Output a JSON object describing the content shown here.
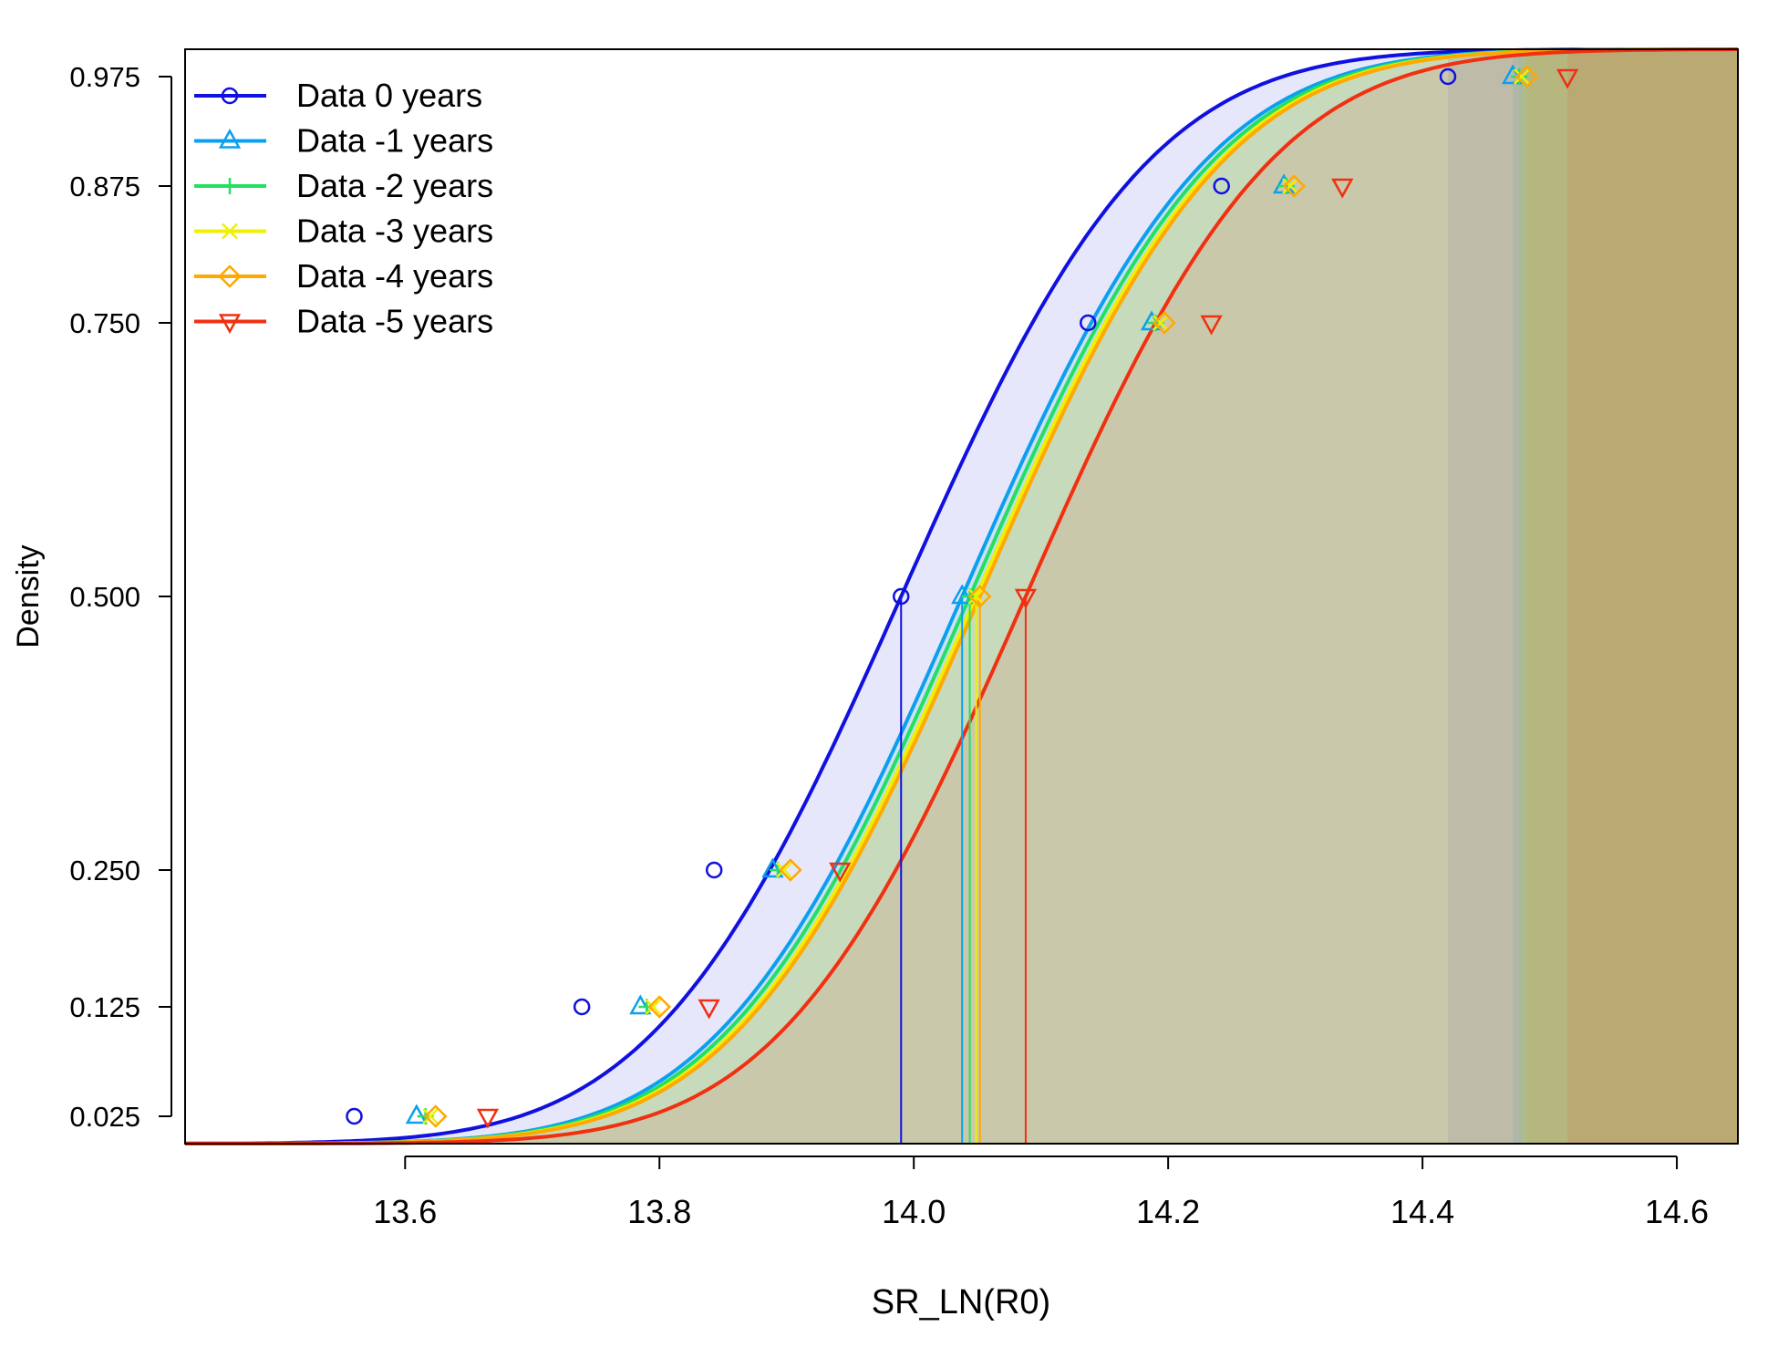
{
  "chart_data": {
    "type": "line",
    "title": "",
    "xlabel": "SR_LN(R0)",
    "ylabel": "Density",
    "xlim": [
      13.427,
      14.648
    ],
    "ylim": [
      0.0,
      1.0
    ],
    "x_ticks": [
      13.6,
      13.8,
      14.0,
      14.2,
      14.4,
      14.6
    ],
    "x_tick_labels": [
      "13.6",
      "13.8",
      "14.0",
      "14.2",
      "14.4",
      "14.6"
    ],
    "y_ticks": [
      0.025,
      0.125,
      0.25,
      0.5,
      0.75,
      0.875,
      0.975
    ],
    "y_tick_labels": [
      "0.025",
      "0.125",
      "0.250",
      "0.500",
      "0.750",
      "0.875",
      "0.975"
    ],
    "grid": false,
    "legend_position": "top-left",
    "series": [
      {
        "name": "Data 0 years",
        "color": "#1010e0",
        "marker": "circle",
        "median": 13.99,
        "sd": 0.1531,
        "shade_from": 14.42,
        "points": [
          [
            13.56,
            0.025
          ],
          [
            13.739,
            0.125
          ],
          [
            13.843,
            0.25
          ],
          [
            13.99,
            0.5
          ],
          [
            14.137,
            0.75
          ],
          [
            14.242,
            0.875
          ],
          [
            14.42,
            0.975
          ]
        ]
      },
      {
        "name": "Data -1 years",
        "color": "#0ba0ee",
        "marker": "triangle",
        "median": 14.038,
        "sd": 0.1505,
        "shade_from": 14.471,
        "points": [
          [
            13.609,
            0.025
          ],
          [
            13.785,
            0.125
          ],
          [
            13.889,
            0.25
          ],
          [
            14.038,
            0.5
          ],
          [
            14.187,
            0.75
          ],
          [
            14.291,
            0.875
          ],
          [
            14.471,
            0.975
          ]
        ]
      },
      {
        "name": "Data -2 years",
        "color": "#22e060",
        "marker": "plus",
        "median": 14.044,
        "sd": 0.1505,
        "shade_from": 14.476,
        "points": [
          [
            13.616,
            0.025
          ],
          [
            13.79,
            0.125
          ],
          [
            13.893,
            0.25
          ],
          [
            14.044,
            0.5
          ],
          [
            14.19,
            0.75
          ],
          [
            14.293,
            0.875
          ],
          [
            14.476,
            0.975
          ]
        ]
      },
      {
        "name": "Data -3 years",
        "color": "#f0f000",
        "marker": "cross",
        "median": 14.049,
        "sd": 0.1505,
        "shade_from": 14.478,
        "points": [
          [
            13.62,
            0.025
          ],
          [
            13.795,
            0.125
          ],
          [
            13.898,
            0.25
          ],
          [
            14.049,
            0.5
          ],
          [
            14.194,
            0.75
          ],
          [
            14.296,
            0.875
          ],
          [
            14.478,
            0.975
          ]
        ]
      },
      {
        "name": "Data -4 years",
        "color": "#ffa800",
        "marker": "diamond",
        "median": 14.052,
        "sd": 0.1505,
        "shade_from": 14.482,
        "points": [
          [
            13.624,
            0.025
          ],
          [
            13.8,
            0.125
          ],
          [
            13.903,
            0.25
          ],
          [
            14.052,
            0.5
          ],
          [
            14.197,
            0.75
          ],
          [
            14.299,
            0.875
          ],
          [
            14.482,
            0.975
          ]
        ]
      },
      {
        "name": "Data -5 years",
        "color": "#f03010",
        "marker": "triangle-down",
        "median": 14.088,
        "sd": 0.1515,
        "shade_from": 14.514,
        "points": [
          [
            13.665,
            0.025
          ],
          [
            13.839,
            0.125
          ],
          [
            13.942,
            0.25
          ],
          [
            14.088,
            0.5
          ],
          [
            14.234,
            0.75
          ],
          [
            14.337,
            0.875
          ],
          [
            14.514,
            0.975
          ]
        ]
      }
    ]
  }
}
